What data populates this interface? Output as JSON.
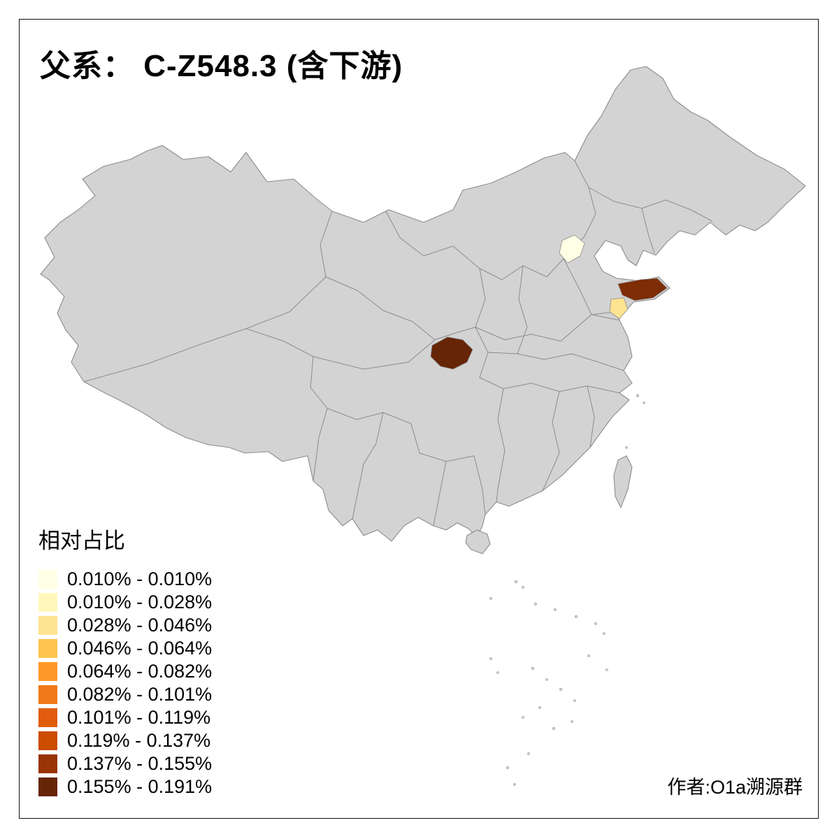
{
  "chart_data": {
    "type": "choropleth",
    "title": "父系： C-Z548.3 (含下游)",
    "legend": {
      "title": "相对占比",
      "classes": [
        {
          "range": "0.010% - 0.010%",
          "color": "#FFFFE5"
        },
        {
          "range": "0.010% - 0.028%",
          "color": "#FFF7BC"
        },
        {
          "range": "0.028% - 0.046%",
          "color": "#FEE391"
        },
        {
          "range": "0.046% - 0.064%",
          "color": "#FEC44F"
        },
        {
          "range": "0.064% - 0.082%",
          "color": "#FE9929"
        },
        {
          "range": "0.082% - 0.101%",
          "color": "#F07818"
        },
        {
          "range": "0.101% - 0.119%",
          "color": "#E05C0C"
        },
        {
          "range": "0.119% - 0.137%",
          "color": "#CC4C02"
        },
        {
          "range": "0.137% - 0.155%",
          "color": "#993404"
        },
        {
          "range": "0.155% - 0.191%",
          "color": "#662506"
        }
      ]
    },
    "credit": "作者:O1a溯源群",
    "base_region_color": "#D3D3D3",
    "boundary_color": "#8C8C8C",
    "highlighted_regions": [
      {
        "region": "beijing-area",
        "color": "#FFFFE5"
      },
      {
        "region": "shandong-peninsula-northeast",
        "color": "#7E2C04"
      },
      {
        "region": "shandong-peninsula-south",
        "color": "#FEE391"
      },
      {
        "region": "gansu-south",
        "color": "#662506"
      }
    ]
  }
}
